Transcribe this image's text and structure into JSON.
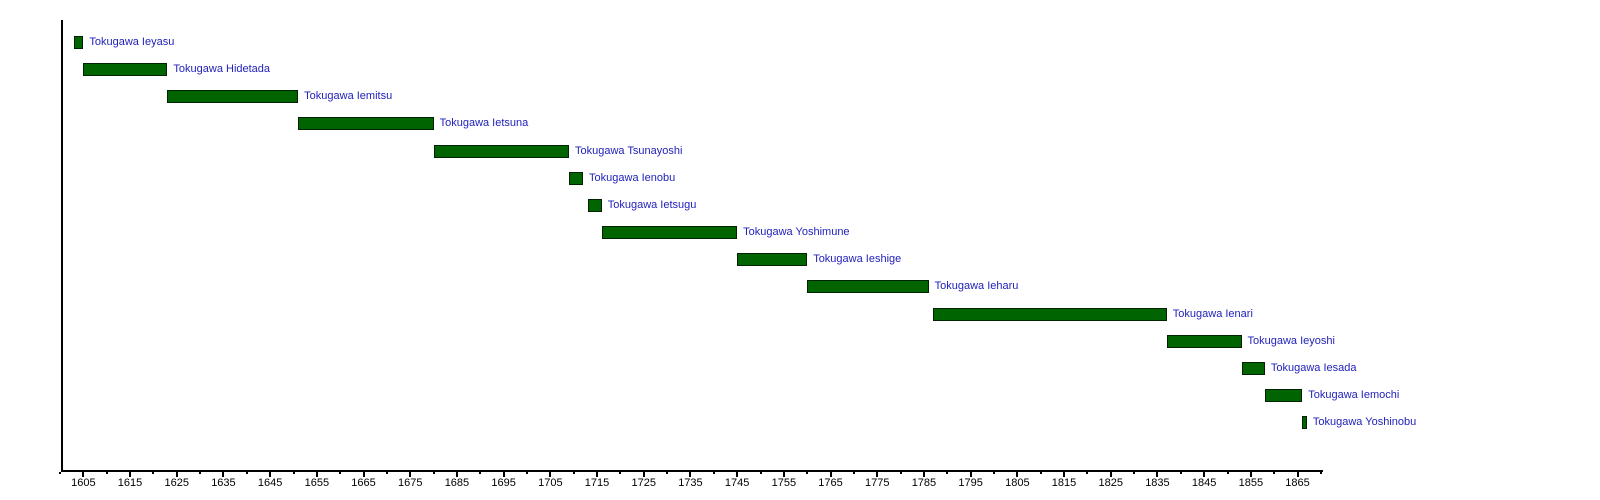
{
  "chart_data": {
    "type": "gantt",
    "title": "",
    "x_axis": {
      "min": 1600,
      "max": 1870,
      "minor_tick_step": 5,
      "major_tick_years": [
        1605,
        1615,
        1625,
        1635,
        1645,
        1655,
        1665,
        1675,
        1685,
        1695,
        1705,
        1715,
        1725,
        1735,
        1745,
        1755,
        1765,
        1775,
        1785,
        1795,
        1805,
        1815,
        1825,
        1835,
        1845,
        1855,
        1865
      ],
      "tick_labels": [
        "1605",
        "1615",
        "1625",
        "1635",
        "1645",
        "1655",
        "1665",
        "1675",
        "1685",
        "1695",
        "1705",
        "1715",
        "1725",
        "1735",
        "1745",
        "1755",
        "1765",
        "1775",
        "1785",
        "1795",
        "1805",
        "1815",
        "1825",
        "1835",
        "1845",
        "1855",
        "1865"
      ]
    },
    "bars": [
      {
        "label": "Tokugawa Ieyasu",
        "start": 1603,
        "end": 1605
      },
      {
        "label": "Tokugawa Hidetada",
        "start": 1605,
        "end": 1623
      },
      {
        "label": "Tokugawa Iemitsu",
        "start": 1623,
        "end": 1651
      },
      {
        "label": "Tokugawa Ietsuna",
        "start": 1651,
        "end": 1680
      },
      {
        "label": "Tokugawa Tsunayoshi",
        "start": 1680,
        "end": 1709
      },
      {
        "label": "Tokugawa Ienobu",
        "start": 1709,
        "end": 1712
      },
      {
        "label": "Tokugawa Ietsugu",
        "start": 1713,
        "end": 1716
      },
      {
        "label": "Tokugawa Yoshimune",
        "start": 1716,
        "end": 1745
      },
      {
        "label": "Tokugawa Ieshige",
        "start": 1745,
        "end": 1760
      },
      {
        "label": "Tokugawa Ieharu",
        "start": 1760,
        "end": 1786
      },
      {
        "label": "Tokugawa Ienari",
        "start": 1787,
        "end": 1837
      },
      {
        "label": "Tokugawa Ieyoshi",
        "start": 1837,
        "end": 1853
      },
      {
        "label": "Tokugawa Iesada",
        "start": 1853,
        "end": 1858
      },
      {
        "label": "Tokugawa Iemochi",
        "start": 1858,
        "end": 1866
      },
      {
        "label": "Tokugawa Yoshinobu",
        "start": 1866,
        "end": 1867
      }
    ],
    "colors": {
      "background": "#ffffff",
      "bar_fill": "#006400",
      "bar_border": "#002200",
      "bar_label": "#2222bb",
      "axis": "#000000",
      "tick_label": "#000000"
    },
    "layout_hints": {
      "grid": "off",
      "legend": "none",
      "bar_labels_position": "right-of-bar"
    }
  }
}
